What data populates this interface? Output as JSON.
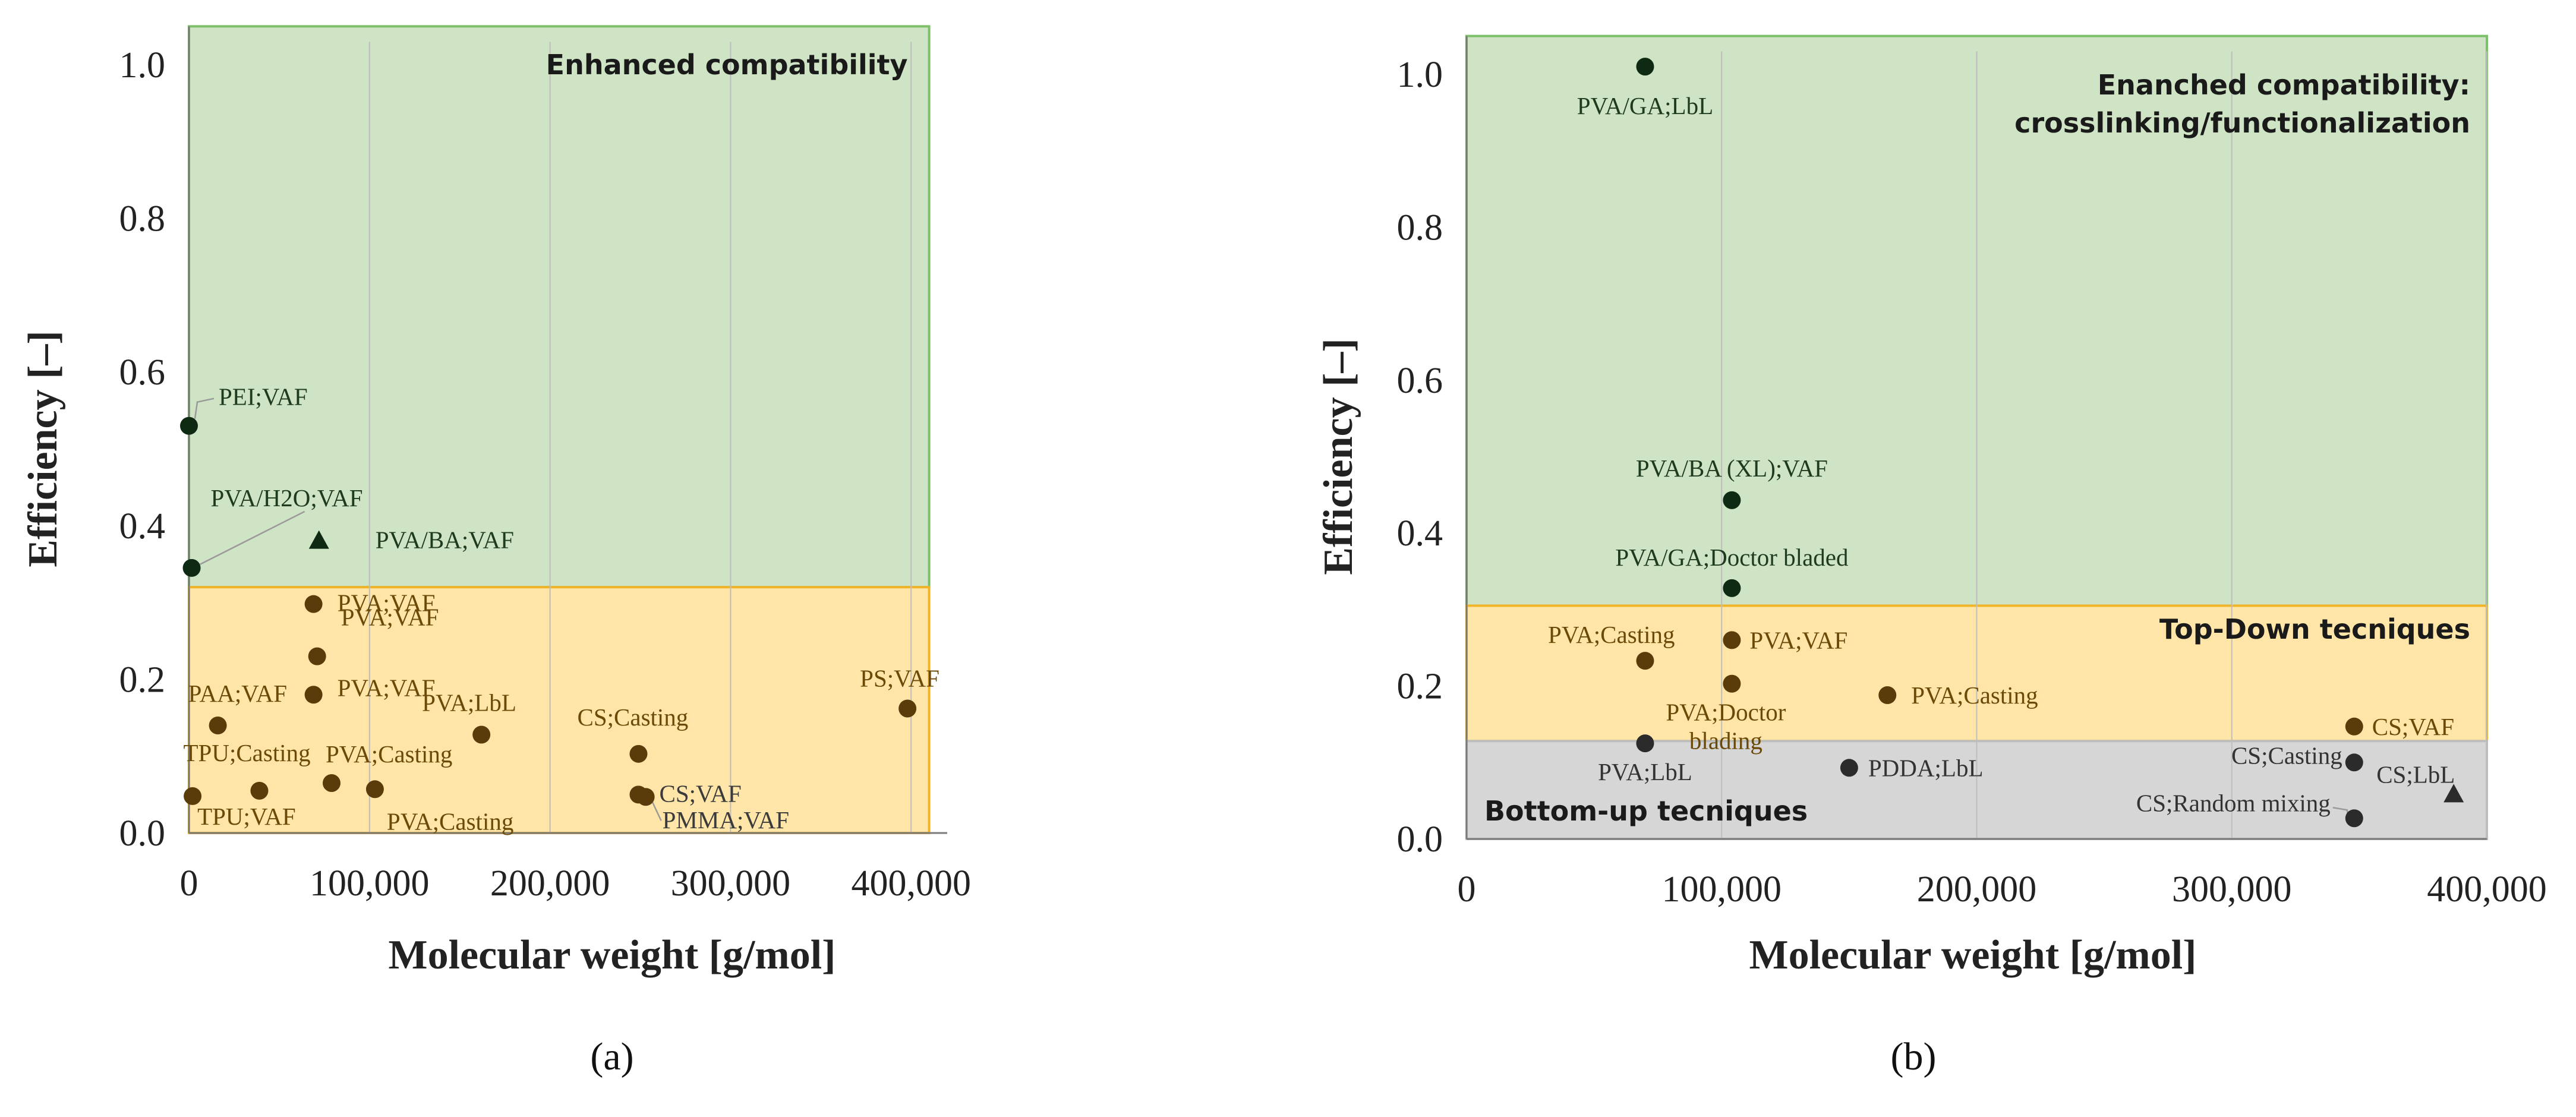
{
  "chart_data": [
    {
      "type": "scatter",
      "panel_label": "(a)",
      "xlabel": "Molecular weight [g/mol]",
      "ylabel": "Efficiency [–]",
      "xlim": [
        0,
        420000
      ],
      "ylim": [
        0,
        1.0
      ],
      "x_ticks": [
        0,
        100000,
        200000,
        300000,
        400000
      ],
      "x_tick_labels": [
        "0",
        "100,000",
        "200,000",
        "300,000",
        "400,000"
      ],
      "y_ticks": [
        0,
        0.2,
        0.4,
        0.6,
        0.8,
        1.0
      ],
      "y_tick_labels": [
        "0.0",
        "0.2",
        "0.4",
        "0.6",
        "0.8",
        "1.0"
      ],
      "regions": [
        {
          "name": "Enhanced compatibility",
          "y_range": [
            0.32,
            1.05
          ],
          "x_range": [
            0,
            410000
          ],
          "fill": "#cfe4c5",
          "stroke": "#7cc06a"
        },
        {
          "name": "",
          "y_range": [
            0,
            0.32
          ],
          "x_range": [
            0,
            410000
          ],
          "fill": "#ffe6a8",
          "stroke": "#f0b429"
        }
      ],
      "points": [
        {
          "label": "PEI;VAF",
          "x": 0,
          "y": 0.53,
          "marker": "circle",
          "color": "#0f2a12"
        },
        {
          "label": "PVA/H2O;VAF",
          "x": 1500,
          "y": 0.345,
          "marker": "circle",
          "color": "#0f2a12"
        },
        {
          "label": "PVA/BA;VAF",
          "x": 72000,
          "y": 0.38,
          "marker": "triangle",
          "color": "#0f2a12"
        },
        {
          "label": "PVA;VAF",
          "x": 69000,
          "y": 0.298,
          "marker": "circle",
          "color": "#5a3b0a"
        },
        {
          "label": "PVA;VAF",
          "x": 71000,
          "y": 0.23,
          "marker": "circle",
          "color": "#5a3b0a"
        },
        {
          "label": "PVA;VAF",
          "x": 69000,
          "y": 0.18,
          "marker": "circle",
          "color": "#5a3b0a"
        },
        {
          "label": "PAA;VAF",
          "x": 16000,
          "y": 0.14,
          "marker": "circle",
          "color": "#5a3b0a"
        },
        {
          "label": "TPU;Casting",
          "x": 39000,
          "y": 0.055,
          "marker": "circle",
          "color": "#5a3b0a"
        },
        {
          "label": "TPU;VAF",
          "x": 2000,
          "y": 0.048,
          "marker": "circle",
          "color": "#5a3b0a"
        },
        {
          "label": "PVA;Casting",
          "x": 79000,
          "y": 0.065,
          "marker": "circle",
          "color": "#5a3b0a"
        },
        {
          "label": "PVA;Casting",
          "x": 103000,
          "y": 0.057,
          "marker": "circle",
          "color": "#5a3b0a"
        },
        {
          "label": "PVA;LbL",
          "x": 162000,
          "y": 0.128,
          "marker": "circle",
          "color": "#5a3b0a"
        },
        {
          "label": "CS;Casting",
          "x": 249000,
          "y": 0.103,
          "marker": "circle",
          "color": "#5a3b0a"
        },
        {
          "label": "CS;VAF",
          "x": 249000,
          "y": 0.05,
          "marker": "circle",
          "color": "#5a3b0a"
        },
        {
          "label": "PMMA;VAF",
          "x": 253000,
          "y": 0.047,
          "marker": "circle",
          "color": "#5a3b0a"
        },
        {
          "label": "PS;VAF",
          "x": 398000,
          "y": 0.162,
          "marker": "circle",
          "color": "#5a3b0a"
        }
      ]
    },
    {
      "type": "scatter",
      "panel_label": "(b)",
      "xlabel": "Molecular weight [g/mol]",
      "ylabel": "Efficiency [–]",
      "xlim": [
        0,
        400000
      ],
      "ylim": [
        0,
        1.0
      ],
      "x_ticks": [
        0,
        100000,
        200000,
        300000,
        400000
      ],
      "x_tick_labels": [
        "0",
        "100,000",
        "200,000",
        "300,000",
        "400,000"
      ],
      "y_ticks": [
        0,
        0.2,
        0.4,
        0.6,
        0.8,
        1.0
      ],
      "y_tick_labels": [
        "0.0",
        "0.2",
        "0.4",
        "0.6",
        "0.8",
        "1.0"
      ],
      "regions": [
        {
          "name_line1": "Enanched compatibility:",
          "name_line2": "crosslinking/functionalization",
          "y_range": [
            0.305,
            1.05
          ],
          "x_range": [
            0,
            400000
          ],
          "fill": "#cfe4c5",
          "stroke": "#7cc06a"
        },
        {
          "name": "Top-Down tecniques",
          "y_range": [
            0.128,
            0.305
          ],
          "x_range": [
            0,
            400000
          ],
          "fill": "#ffe6a8",
          "stroke": "#f0b429"
        },
        {
          "name": "Bottom-up tecniques",
          "y_range": [
            0,
            0.128
          ],
          "x_range": [
            0,
            400000
          ],
          "fill": "#d6d6d6",
          "stroke": "#bdbdbd"
        }
      ],
      "points": [
        {
          "label": "PVA/GA;LbL",
          "x": 70000,
          "y": 1.01,
          "marker": "circle",
          "color": "#0f2a12"
        },
        {
          "label": "PVA/BA (XL);VAF",
          "x": 104000,
          "y": 0.443,
          "marker": "circle",
          "color": "#0f2a12"
        },
        {
          "label": "PVA/GA;Doctor bladed",
          "x": 104000,
          "y": 0.328,
          "marker": "circle",
          "color": "#0f2a12"
        },
        {
          "label": "PVA;Casting",
          "x": 70000,
          "y": 0.233,
          "marker": "circle",
          "color": "#5a3b0a"
        },
        {
          "label": "PVA;VAF",
          "x": 104000,
          "y": 0.26,
          "marker": "circle",
          "color": "#5a3b0a"
        },
        {
          "label_line1": "PVA;Doctor",
          "label_line2": "blading",
          "x": 104000,
          "y": 0.203,
          "marker": "circle",
          "color": "#5a3b0a"
        },
        {
          "label": "PVA;Casting",
          "x": 165000,
          "y": 0.188,
          "marker": "circle",
          "color": "#5a3b0a"
        },
        {
          "label": "CS;VAF",
          "x": 348000,
          "y": 0.147,
          "marker": "circle",
          "color": "#5a3b0a"
        },
        {
          "label": "PVA;LbL",
          "x": 70000,
          "y": 0.125,
          "marker": "circle",
          "color": "#2b2b2b"
        },
        {
          "label": "PDDA;LbL",
          "x": 150000,
          "y": 0.093,
          "marker": "circle",
          "color": "#2b2b2b"
        },
        {
          "label": "CS;Casting",
          "x": 348000,
          "y": 0.1,
          "marker": "circle",
          "color": "#2b2b2b"
        },
        {
          "label": "CS;LbL",
          "x": 387000,
          "y": 0.058,
          "marker": "triangle",
          "color": "#2b2b2b"
        },
        {
          "label": "CS;Random mixing",
          "x": 348000,
          "y": 0.027,
          "marker": "circle",
          "color": "#2b2b2b"
        }
      ]
    }
  ]
}
